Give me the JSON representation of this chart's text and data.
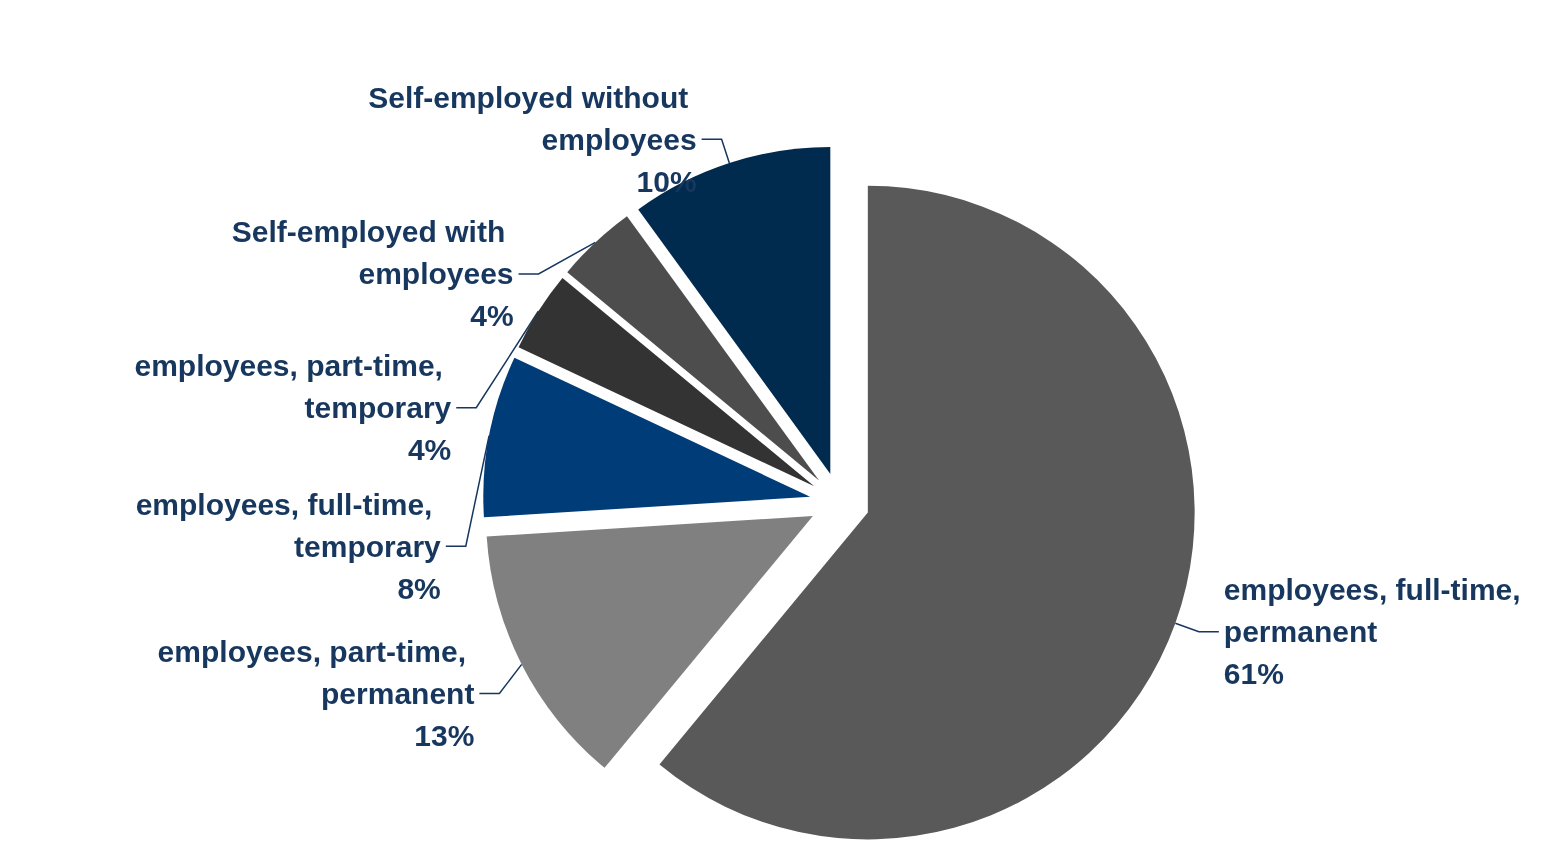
{
  "chart_data": {
    "type": "pie",
    "categories": [
      "employees, full-time, permanent",
      "employees, part-time, permanent",
      "employees, full-time, temporary",
      "employees, part-time, temporary",
      "Self-employed with employees",
      "Self-employed without employees"
    ],
    "values": [
      61,
      13,
      8,
      4,
      4,
      10
    ],
    "value_labels": [
      "61%",
      "13%",
      "8%",
      "4%",
      "4%",
      "10%"
    ],
    "colors": [
      "#595959",
      "#808080",
      "#003c78",
      "#333333",
      "#4d4d4d",
      "#002a4e"
    ],
    "legend": false
  }
}
